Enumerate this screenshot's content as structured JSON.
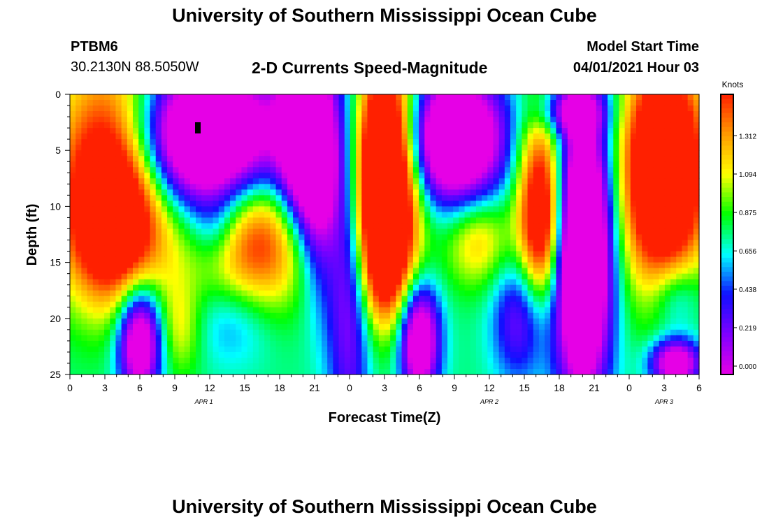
{
  "page": {
    "title_top": "University of Southern Mississippi Ocean Cube",
    "title_bottom": "University of Southern Mississippi Ocean Cube",
    "station_id": "PTBM6",
    "station_coords": "30.2130N  88.5050W",
    "model_start_label": "Model Start Time",
    "model_start_value": "04/01/2021 Hour 03"
  },
  "chart_data": {
    "type": "heatmap",
    "title": "2-D Currents Speed-Magnitude",
    "xlabel": "Forecast Time(Z)",
    "ylabel": "Depth (ft)",
    "x_range_hours": [
      0,
      54
    ],
    "y_range_ft": [
      0,
      25
    ],
    "y_ticks": [
      "0",
      "5",
      "10",
      "15",
      "20",
      "25"
    ],
    "x_tick_labels": [
      "0",
      "3",
      "6",
      "9",
      "12",
      "15",
      "18",
      "21",
      "0",
      "3",
      "6",
      "9",
      "12",
      "15",
      "18",
      "21",
      "0",
      "3",
      "6"
    ],
    "date_labels": [
      {
        "text": "APR  1",
        "hour": 11.5
      },
      {
        "text": "APR  2",
        "hour": 36
      },
      {
        "text": "APR  3",
        "hour": 51
      }
    ],
    "colorbar": {
      "unit": "Knots",
      "ticks": [
        "1.312",
        "1.094",
        "0.875",
        "0.656",
        "0.438",
        "0.219",
        "0.000"
      ],
      "range": [
        0,
        1.5
      ]
    },
    "palette": [
      "#e600e6",
      "#7f00ff",
      "#1010ff",
      "#00ffff",
      "#00ff00",
      "#ffff00",
      "#ff9900",
      "#ff2000"
    ],
    "features": [
      {
        "t": 4,
        "z": 7,
        "st": 3.5,
        "sz": 7,
        "v": 0.95
      },
      {
        "t": 3.5,
        "z": 13,
        "st": 2.5,
        "sz": 4,
        "v": 0.25
      },
      {
        "t": 6,
        "z": 22,
        "st": 1.3,
        "sz": 3.5,
        "v": -0.75
      },
      {
        "t": 9.5,
        "z": 21,
        "st": 1.3,
        "sz": 3,
        "v": 0.2
      },
      {
        "t": 11,
        "z": 4,
        "st": 5,
        "sz": 4.5,
        "v": -1.05
      },
      {
        "t": 16,
        "z": 13,
        "st": 3.5,
        "sz": 4.5,
        "v": 0.55
      },
      {
        "t": 14,
        "z": 20,
        "st": 2.5,
        "sz": 3,
        "v": -0.2
      },
      {
        "t": 12.5,
        "z": 12,
        "st": 1.5,
        "sz": 2.5,
        "v": -0.2
      },
      {
        "t": 20,
        "z": 4,
        "st": 1.5,
        "sz": 6,
        "v": -0.75
      },
      {
        "t": 21.5,
        "z": 8,
        "st": 1.2,
        "sz": 7,
        "v": -0.45
      },
      {
        "t": 24,
        "z": 15,
        "st": 1.3,
        "sz": 12,
        "v": -0.45
      },
      {
        "t": 27,
        "z": 7,
        "st": 2,
        "sz": 7,
        "v": 1.15
      },
      {
        "t": 27,
        "z": 15,
        "st": 1.5,
        "sz": 4,
        "v": 0.35
      },
      {
        "t": 30,
        "z": 22,
        "st": 1.2,
        "sz": 3.5,
        "v": -0.75
      },
      {
        "t": 33,
        "z": 4,
        "st": 3,
        "sz": 4,
        "v": -0.95
      },
      {
        "t": 35,
        "z": 13,
        "st": 2,
        "sz": 3,
        "v": 0.3
      },
      {
        "t": 40.5,
        "z": 9,
        "st": 1.5,
        "sz": 6,
        "v": 0.6
      },
      {
        "t": 40.5,
        "z": 13,
        "st": 1.2,
        "sz": 4,
        "v": 0.25
      },
      {
        "t": 38.5,
        "z": 20,
        "st": 1.6,
        "sz": 4,
        "v": -0.35
      },
      {
        "t": 44,
        "z": 14,
        "st": 1.7,
        "sz": 9,
        "v": -1.1
      },
      {
        "t": 43,
        "z": 1.5,
        "st": 2,
        "sz": 1.5,
        "v": -0.4
      },
      {
        "t": 51,
        "z": 7,
        "st": 2.5,
        "sz": 7,
        "v": 1.0
      },
      {
        "t": 52,
        "z": 18,
        "st": 1.5,
        "sz": 2.5,
        "v": -0.25
      },
      {
        "t": 52,
        "z": 24,
        "st": 1.5,
        "sz": 1.5,
        "v": -0.7
      }
    ]
  }
}
